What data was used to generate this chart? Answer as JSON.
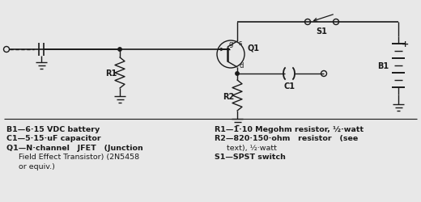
{
  "bg_color": "#e8e8e8",
  "fg_color": "#1a1a1a",
  "figsize": [
    5.2,
    2.51
  ],
  "dpi": 100,
  "parts_list_left": [
    [
      "B1—6·15 VDC battery",
      true
    ],
    [
      "C1—5·15·uF capacitor",
      true
    ],
    [
      "Q1—N·channel   JFET   (Junction",
      true
    ],
    [
      "     Field Effect Transistor) (2N5458",
      false
    ],
    [
      "     or equiv.)",
      false
    ]
  ],
  "parts_list_right": [
    [
      "R1—1·10 Megohm resistor, ½·watt",
      true
    ],
    [
      "R2—820·150·ohm   resistor   (see",
      true
    ],
    [
      "     text), ½·watt",
      false
    ],
    [
      "S1—SPST switch",
      true
    ]
  ]
}
